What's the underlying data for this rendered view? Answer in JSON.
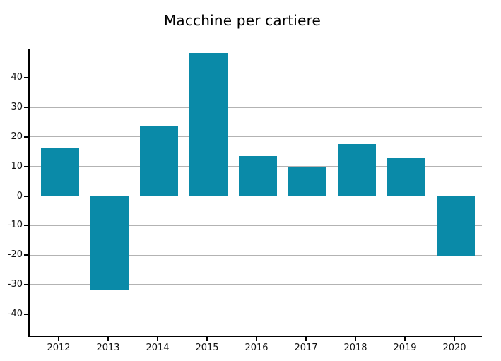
{
  "chart_data": {
    "type": "bar",
    "title": "Macchine per cartiere",
    "categories": [
      "2012",
      "2013",
      "2014",
      "2015",
      "2016",
      "2017",
      "2018",
      "2019",
      "2020"
    ],
    "values": [
      16.5,
      -32,
      23.5,
      48.5,
      13.5,
      10,
      17.5,
      13,
      -20.5
    ],
    "xlabel": "",
    "ylabel": "",
    "ylim": [
      -47.5,
      50
    ],
    "y_ticks": [
      40,
      30,
      20,
      10,
      0,
      -10,
      -20,
      -30,
      -40
    ],
    "grid": "horizontal-only",
    "legend_position": "none",
    "colors": {
      "bar": "#0a8aa8",
      "grid": "#b3b3b3",
      "axis": "#000000",
      "tick_text": "#111111",
      "background": "#ffffff",
      "title_text": "#000000"
    }
  }
}
